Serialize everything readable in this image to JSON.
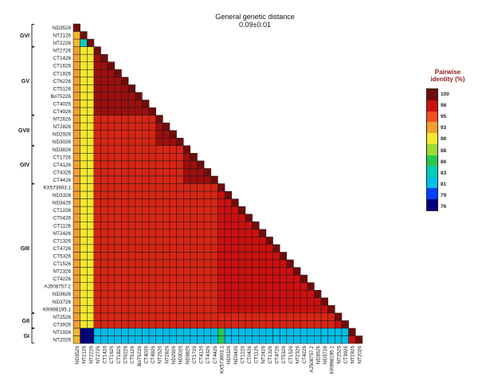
{
  "title": {
    "line1": "General genetic distance",
    "line2": "0.09±0.01"
  },
  "legend": {
    "title_line1": "Pairwise",
    "title_line2": "identity (%)",
    "ticks": [
      100,
      98,
      95,
      93,
      90,
      88,
      86,
      83,
      81,
      79,
      76
    ]
  },
  "colors": {
    "scale": [
      {
        "v": 76,
        "c": "#000080"
      },
      {
        "v": 79,
        "c": "#0040ff"
      },
      {
        "v": 81,
        "c": "#00bfe8"
      },
      {
        "v": 83,
        "c": "#00cfc0"
      },
      {
        "v": 86,
        "c": "#28c850"
      },
      {
        "v": 88,
        "c": "#9adc32"
      },
      {
        "v": 90,
        "c": "#f2e830"
      },
      {
        "v": 93,
        "c": "#f0a030"
      },
      {
        "v": 95,
        "c": "#f05020"
      },
      {
        "v": 98,
        "c": "#cc1010"
      },
      {
        "v": 100,
        "c": "#700c0c"
      }
    ],
    "cell_border": "#1a1a1a",
    "legend_title": "#8b1a1a"
  },
  "chart_data": {
    "type": "heatmap",
    "title": "General genetic distance 0.09±0.01",
    "legend_label": "Pairwise identity (%)",
    "value_range": [
      76,
      100
    ],
    "taxa": [
      "ND3526",
      "NT2126",
      "NT2226",
      "NT2726",
      "CT1426",
      "CT1626",
      "CT1826",
      "CT6226",
      "CT5126",
      "BoT5226",
      "CT4026",
      "CT4926",
      "NT2626",
      "NT2826",
      "ND2926",
      "ND3026",
      "ND3826",
      "CT1726",
      "CT4126",
      "CT4326",
      "CT4426",
      "KX573903.1",
      "ND3326",
      "ND3426",
      "CT1226",
      "CT0426",
      "CT1126",
      "NT2426",
      "CT1326",
      "CT4726",
      "CT5326",
      "CT1526",
      "NT2326",
      "CT4226",
      "AJ508757.2",
      "ND3626",
      "ND3726",
      "KR998195.1",
      "NT2526",
      "CT3926",
      "NT1926",
      "NT2026"
    ],
    "groups": [
      {
        "label": "GVI",
        "start": 0,
        "end": 2
      },
      {
        "label": "GV",
        "start": 3,
        "end": 11
      },
      {
        "label": "GVII",
        "start": 12,
        "end": 15
      },
      {
        "label": "GIV",
        "start": 16,
        "end": 20
      },
      {
        "label": "GIII",
        "start": 21,
        "end": 37
      },
      {
        "label": "GII",
        "start": 38,
        "end": 39
      },
      {
        "label": "GI",
        "start": 40,
        "end": 41
      }
    ],
    "matrix": [
      [
        100
      ],
      [
        92,
        100
      ],
      [
        92,
        83,
        100
      ],
      [
        93,
        90,
        90,
        100
      ],
      [
        93,
        90,
        90,
        99,
        100
      ],
      [
        93,
        90,
        90,
        99,
        99,
        100
      ],
      [
        93,
        90,
        90,
        99,
        99,
        99,
        100
      ],
      [
        93,
        90,
        90,
        99,
        99,
        99,
        99,
        100
      ],
      [
        93,
        90,
        90,
        99,
        99,
        99,
        99,
        99,
        100
      ],
      [
        93,
        90,
        90,
        99,
        99,
        99,
        99,
        99,
        99,
        100
      ],
      [
        93,
        90,
        90,
        99,
        99,
        99,
        99,
        99,
        99,
        99,
        100
      ],
      [
        93,
        90,
        90,
        99,
        99,
        99,
        99,
        99,
        99,
        99,
        99,
        100
      ],
      [
        93,
        90,
        90,
        97,
        97,
        97,
        97,
        97,
        97,
        97,
        97,
        97,
        100
      ],
      [
        93,
        90,
        90,
        97,
        97,
        97,
        97,
        97,
        97,
        97,
        97,
        97,
        99,
        100
      ],
      [
        93,
        90,
        90,
        97,
        97,
        97,
        97,
        97,
        97,
        97,
        97,
        97,
        99,
        99,
        100
      ],
      [
        93,
        90,
        90,
        97,
        97,
        97,
        97,
        97,
        97,
        97,
        97,
        97,
        99,
        99,
        99,
        100
      ],
      [
        93,
        90,
        90,
        97,
        97,
        97,
        97,
        97,
        97,
        97,
        97,
        97,
        97,
        97,
        97,
        97,
        100
      ],
      [
        93,
        90,
        90,
        97,
        97,
        97,
        97,
        97,
        97,
        97,
        97,
        97,
        97,
        97,
        97,
        97,
        99,
        100
      ],
      [
        93,
        90,
        90,
        97,
        97,
        97,
        97,
        97,
        97,
        97,
        97,
        97,
        97,
        97,
        97,
        97,
        99,
        99,
        100
      ],
      [
        93,
        90,
        90,
        97,
        97,
        97,
        97,
        97,
        97,
        97,
        97,
        97,
        97,
        97,
        97,
        97,
        99,
        99,
        99,
        100
      ],
      [
        93,
        90,
        90,
        97,
        97,
        97,
        97,
        97,
        97,
        97,
        97,
        97,
        97,
        97,
        97,
        97,
        99,
        99,
        99,
        99,
        100
      ],
      [
        93,
        90,
        90,
        97,
        97,
        97,
        97,
        97,
        97,
        97,
        97,
        97,
        97,
        97,
        97,
        97,
        97,
        97,
        97,
        97,
        97,
        100
      ],
      [
        93,
        90,
        90,
        97,
        97,
        97,
        97,
        97,
        97,
        97,
        97,
        97,
        97,
        97,
        97,
        97,
        97,
        97,
        97,
        97,
        97,
        98,
        100
      ],
      [
        93,
        90,
        90,
        97,
        97,
        97,
        97,
        97,
        97,
        97,
        97,
        97,
        97,
        97,
        97,
        97,
        97,
        97,
        97,
        97,
        97,
        98,
        98,
        100
      ],
      [
        93,
        90,
        90,
        97,
        97,
        97,
        97,
        97,
        97,
        97,
        97,
        97,
        97,
        97,
        97,
        97,
        97,
        97,
        97,
        97,
        97,
        98,
        98,
        98,
        100
      ],
      [
        93,
        90,
        90,
        97,
        97,
        97,
        97,
        97,
        97,
        97,
        97,
        97,
        97,
        97,
        97,
        97,
        97,
        97,
        97,
        97,
        97,
        98,
        98,
        98,
        98,
        100
      ],
      [
        93,
        90,
        90,
        97,
        97,
        97,
        97,
        97,
        97,
        97,
        97,
        97,
        97,
        97,
        97,
        97,
        97,
        97,
        97,
        97,
        97,
        98,
        98,
        98,
        98,
        98,
        100
      ],
      [
        93,
        90,
        90,
        97,
        97,
        97,
        97,
        97,
        97,
        97,
        97,
        97,
        97,
        97,
        97,
        97,
        97,
        97,
        97,
        97,
        97,
        98,
        98,
        98,
        98,
        98,
        98,
        100
      ],
      [
        93,
        90,
        90,
        97,
        97,
        97,
        97,
        97,
        97,
        97,
        97,
        97,
        97,
        97,
        97,
        97,
        97,
        97,
        97,
        97,
        97,
        98,
        98,
        98,
        98,
        98,
        98,
        98,
        100
      ],
      [
        93,
        90,
        90,
        97,
        97,
        97,
        97,
        97,
        97,
        97,
        97,
        97,
        97,
        97,
        97,
        97,
        97,
        97,
        97,
        97,
        97,
        98,
        98,
        98,
        98,
        98,
        98,
        98,
        98,
        100
      ],
      [
        93,
        90,
        90,
        97,
        97,
        97,
        97,
        97,
        97,
        97,
        97,
        97,
        97,
        97,
        97,
        97,
        97,
        97,
        97,
        97,
        97,
        98,
        98,
        98,
        98,
        98,
        98,
        98,
        98,
        98,
        100
      ],
      [
        93,
        90,
        90,
        97,
        97,
        97,
        97,
        97,
        97,
        97,
        97,
        97,
        97,
        97,
        97,
        97,
        97,
        97,
        97,
        97,
        97,
        98,
        98,
        98,
        98,
        98,
        98,
        98,
        98,
        98,
        98,
        100
      ],
      [
        93,
        90,
        90,
        97,
        97,
        97,
        97,
        97,
        97,
        97,
        97,
        97,
        97,
        97,
        97,
        97,
        97,
        97,
        97,
        97,
        97,
        98,
        98,
        98,
        98,
        98,
        98,
        98,
        98,
        98,
        98,
        98,
        100
      ],
      [
        93,
        90,
        90,
        97,
        97,
        97,
        97,
        97,
        97,
        97,
        97,
        97,
        97,
        97,
        97,
        97,
        97,
        97,
        97,
        97,
        97,
        98,
        98,
        98,
        98,
        98,
        98,
        98,
        98,
        98,
        98,
        98,
        98,
        100
      ],
      [
        93,
        90,
        90,
        97,
        97,
        97,
        97,
        97,
        97,
        97,
        97,
        97,
        97,
        97,
        97,
        97,
        97,
        97,
        97,
        97,
        97,
        98,
        98,
        98,
        98,
        98,
        98,
        98,
        98,
        98,
        98,
        98,
        98,
        98,
        100
      ],
      [
        93,
        90,
        90,
        97,
        97,
        97,
        97,
        97,
        97,
        97,
        97,
        97,
        97,
        97,
        97,
        97,
        97,
        97,
        97,
        97,
        97,
        98,
        98,
        98,
        98,
        98,
        98,
        98,
        98,
        98,
        98,
        98,
        98,
        98,
        98,
        100
      ],
      [
        93,
        90,
        90,
        97,
        97,
        97,
        97,
        97,
        97,
        97,
        97,
        97,
        97,
        97,
        97,
        97,
        97,
        97,
        97,
        97,
        97,
        98,
        98,
        98,
        98,
        98,
        98,
        98,
        98,
        98,
        98,
        98,
        98,
        98,
        98,
        98,
        100
      ],
      [
        93,
        90,
        90,
        97,
        97,
        97,
        97,
        97,
        97,
        97,
        97,
        97,
        97,
        97,
        97,
        97,
        97,
        97,
        97,
        97,
        97,
        98,
        98,
        98,
        98,
        98,
        98,
        98,
        98,
        98,
        98,
        98,
        98,
        98,
        98,
        98,
        98,
        100
      ],
      [
        93,
        90,
        90,
        97,
        97,
        97,
        97,
        97,
        97,
        97,
        97,
        97,
        97,
        97,
        97,
        97,
        97,
        97,
        97,
        97,
        97,
        97,
        97,
        97,
        97,
        97,
        97,
        97,
        97,
        97,
        97,
        97,
        97,
        97,
        97,
        97,
        97,
        97,
        100
      ],
      [
        93,
        90,
        90,
        97,
        97,
        97,
        97,
        97,
        97,
        97,
        97,
        97,
        97,
        97,
        97,
        97,
        97,
        97,
        97,
        97,
        97,
        97,
        97,
        97,
        97,
        97,
        97,
        97,
        97,
        97,
        97,
        97,
        97,
        97,
        97,
        97,
        97,
        97,
        98,
        100
      ],
      [
        92,
        76,
        76,
        81,
        81,
        81,
        81,
        81,
        81,
        81,
        81,
        81,
        81,
        81,
        81,
        81,
        81,
        81,
        81,
        81,
        81,
        86,
        81,
        81,
        81,
        81,
        81,
        81,
        81,
        81,
        81,
        81,
        81,
        81,
        81,
        81,
        81,
        81,
        81,
        81,
        100
      ],
      [
        92,
        76,
        76,
        81,
        81,
        81,
        81,
        81,
        81,
        81,
        81,
        81,
        81,
        81,
        81,
        81,
        81,
        81,
        81,
        81,
        81,
        86,
        81,
        81,
        81,
        81,
        81,
        81,
        81,
        81,
        81,
        81,
        81,
        81,
        81,
        81,
        81,
        81,
        81,
        81,
        98,
        100
      ]
    ]
  }
}
